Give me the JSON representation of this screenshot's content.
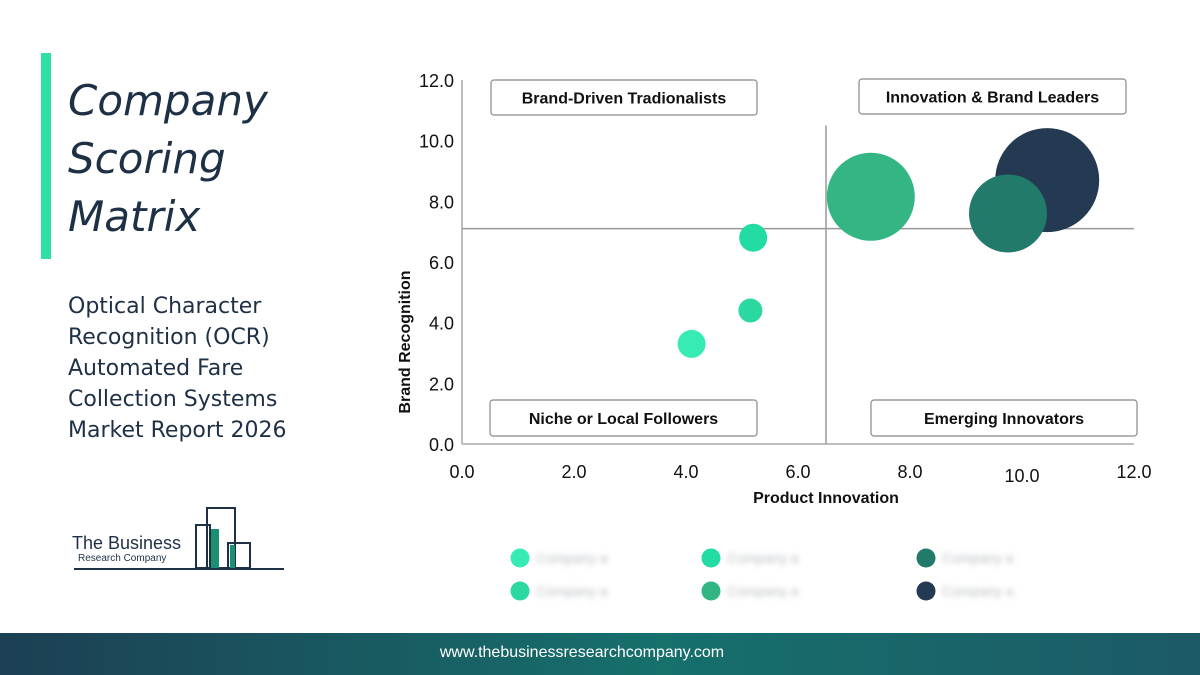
{
  "page": {
    "title_lines": [
      "Company",
      "Scoring",
      "Matrix"
    ],
    "subtitle_lines": [
      "Optical Character",
      "Recognition (OCR)",
      "Automated Fare",
      "Collection Systems",
      "Market Report 2026"
    ],
    "logo": {
      "line1": "The Business",
      "line2": "Research Company"
    },
    "footer_url": "www.thebusinessresearchcompany.com",
    "colors": {
      "accent": "#2fe0a6",
      "text": "#1e3045",
      "footer": "#16706c"
    }
  },
  "chart_data": {
    "type": "bubble",
    "xlabel": "Product Innovation",
    "ylabel": "Brand Recognition",
    "xlim": [
      0,
      12
    ],
    "ylim": [
      0,
      12
    ],
    "xticks": [
      "0.0",
      "2.0",
      "4.0",
      "6.0",
      "8.0",
      "10.0",
      "12.0"
    ],
    "yticks": [
      "0.0",
      "2.0",
      "4.0",
      "6.0",
      "8.0",
      "10.0",
      "12.0"
    ],
    "divider": {
      "x": 6.5,
      "y": 7.1
    },
    "quadrants": [
      {
        "label": "Brand-Driven Tradionalists",
        "position": "top-left"
      },
      {
        "label": "Innovation & Brand Leaders",
        "position": "top-right"
      },
      {
        "label": "Niche or Local Followers",
        "position": "bottom-left"
      },
      {
        "label": "Emerging Innovators",
        "position": "bottom-right"
      }
    ],
    "points": [
      {
        "x": 10.45,
        "y": 8.7,
        "size": 52,
        "color": "#233a52"
      },
      {
        "x": 7.3,
        "y": 8.15,
        "size": 44,
        "color": "#33b683"
      },
      {
        "x": 9.75,
        "y": 7.6,
        "size": 39,
        "color": "#227a6b"
      },
      {
        "x": 5.2,
        "y": 6.8,
        "size": 14,
        "color": "#22dca4"
      },
      {
        "x": 5.15,
        "y": 4.4,
        "size": 12,
        "color": "#2ad8a0"
      },
      {
        "x": 4.1,
        "y": 3.3,
        "size": 14,
        "color": "#36ecb4"
      }
    ],
    "legend": [
      {
        "label": "Company a",
        "color": "#36ecb4"
      },
      {
        "label": "Company a",
        "color": "#22dca4"
      },
      {
        "label": "Company a",
        "color": "#227a6b"
      },
      {
        "label": "Company a",
        "color": "#2ad8a0"
      },
      {
        "label": "Company a",
        "color": "#33b683"
      },
      {
        "label": "Company a",
        "color": "#233a52"
      }
    ]
  }
}
